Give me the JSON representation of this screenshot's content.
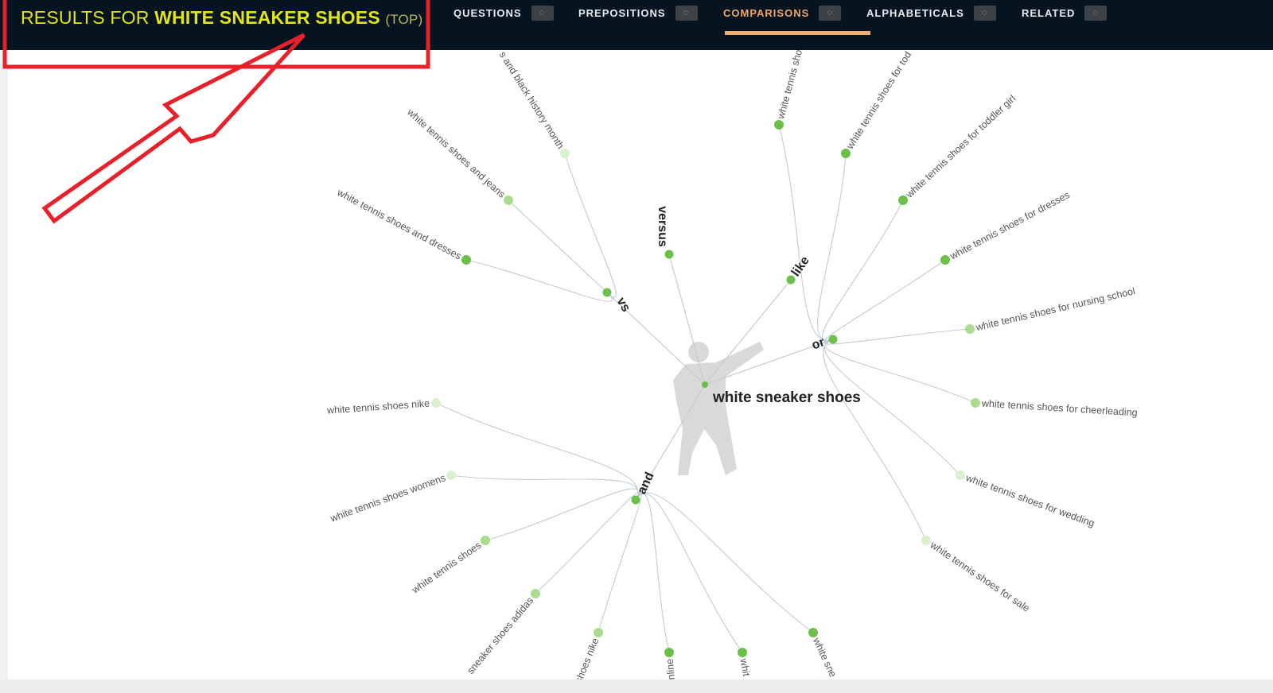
{
  "header": {
    "title_prefix": "RESULTS FOR ",
    "title_keyword": "WHITE SNEAKER SHOES",
    "title_suffix": "(TOP)",
    "tabs": [
      {
        "label": "QUESTIONS",
        "active": false,
        "icon": "spinner-icon"
      },
      {
        "label": "PREPOSITIONS",
        "active": false,
        "icon": "spinner-icon"
      },
      {
        "label": "COMPARISONS",
        "active": true,
        "icon": "spinner-icon"
      },
      {
        "label": "ALPHABETICALS",
        "active": false,
        "icon": "spinner-icon"
      },
      {
        "label": "RELATED",
        "active": false,
        "icon": "spinner-icon"
      }
    ]
  },
  "colors": {
    "header_bg": "#06141f",
    "title": "#e4e41a",
    "active_tab": "#f0a86a",
    "annotation": "#e8202a",
    "node_strong": "#6cc04a",
    "node_mid": "#a9dc8f",
    "node_light": "#dcf0d0",
    "link": "#c2ccd4"
  },
  "map": {
    "center": "white sneaker shoes",
    "hubs": [
      {
        "label": "vs",
        "leaves": [
          {
            "label": "s and black history month",
            "strength": "light"
          },
          {
            "label": "white tennis shoes and jeans",
            "strength": "mid"
          },
          {
            "label": "white tennis shoes and dresses",
            "strength": "strong"
          }
        ]
      },
      {
        "label": "versus",
        "leaves": []
      },
      {
        "label": "like",
        "leaves": []
      },
      {
        "label": "or",
        "leaves": [
          {
            "label": "white tennis sho",
            "strength": "strong"
          },
          {
            "label": "white tennis shoes for tod",
            "strength": "strong"
          },
          {
            "label": "white tennis shoes for toddler girl",
            "strength": "strong"
          },
          {
            "label": "white tennis shoes for dresses",
            "strength": "strong"
          },
          {
            "label": "white tennis shoes for nursing school",
            "strength": "mid"
          },
          {
            "label": "white tennis shoes for cheerleading",
            "strength": "mid"
          },
          {
            "label": "white tennis shoes for wedding",
            "strength": "light"
          },
          {
            "label": "white tennis shoes for sale",
            "strength": "light"
          }
        ]
      },
      {
        "label": "and",
        "leaves": [
          {
            "label": "white tennis shoes nike",
            "strength": "light"
          },
          {
            "label": "white tennis shoes womens",
            "strength": "light"
          },
          {
            "label": "white tennis shoes",
            "strength": "mid"
          },
          {
            "label": "sneaker shoes adidas",
            "strength": "mid"
          },
          {
            "label": "shoes nike",
            "strength": "mid"
          },
          {
            "label": "nline",
            "strength": "strong"
          },
          {
            "label": "whit",
            "strength": "strong"
          },
          {
            "label": "white sne",
            "strength": "strong"
          }
        ]
      }
    ]
  }
}
